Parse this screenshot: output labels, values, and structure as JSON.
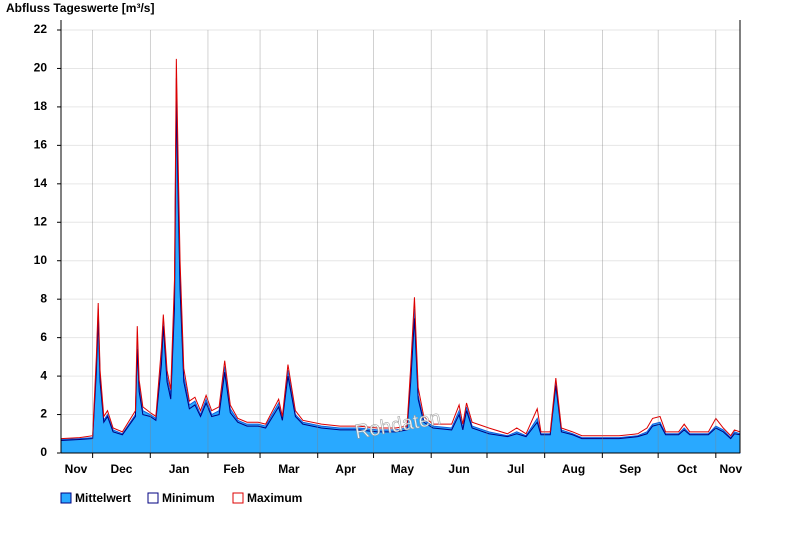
{
  "chart_data": {
    "type": "area",
    "title": "Abfluss Tageswerte [m³/s]",
    "annotation": "Rohdaten",
    "x": [
      0,
      10,
      17,
      19,
      20,
      21,
      23,
      25,
      28,
      33,
      40,
      41,
      42,
      44,
      48,
      51,
      54,
      55,
      57,
      59,
      61,
      62,
      63,
      64,
      66,
      69,
      72,
      75,
      78,
      81,
      85,
      88,
      91,
      95,
      100,
      106,
      110,
      117,
      119,
      122,
      126,
      130,
      140,
      150,
      160,
      170,
      180,
      186,
      188,
      190,
      192,
      195,
      200,
      210,
      214,
      216,
      218,
      221,
      230,
      240,
      245,
      250,
      256,
      258,
      263,
      266,
      269,
      275,
      280,
      290,
      300,
      310,
      315,
      318,
      322,
      325,
      332,
      335,
      338,
      348,
      352,
      356,
      360,
      362,
      365
    ],
    "series": [
      {
        "name": "Mittelwert",
        "color": "#29a9ff",
        "style": "area",
        "values": [
          0.7,
          0.75,
          0.8,
          4.5,
          7.5,
          4,
          1.7,
          2.0,
          1.2,
          1.0,
          2.0,
          5.8,
          3.5,
          2.2,
          2.0,
          1.8,
          5,
          7,
          4,
          3,
          8,
          19.5,
          14,
          9,
          4,
          2.5,
          2.7,
          2.0,
          2.8,
          2.0,
          2.2,
          4.5,
          2.3,
          1.7,
          1.5,
          1.5,
          1.4,
          2.6,
          1.8,
          4.3,
          2.0,
          1.6,
          1.4,
          1.3,
          1.3,
          1.2,
          1.2,
          1.3,
          4,
          7.5,
          3,
          1.7,
          1.4,
          1.3,
          2.2,
          1.3,
          2.4,
          1.4,
          1.1,
          0.9,
          1.1,
          0.9,
          1.8,
          1.0,
          1.0,
          3.7,
          1.2,
          1.0,
          0.8,
          0.8,
          0.8,
          0.9,
          1.1,
          1.5,
          1.6,
          1.0,
          1.0,
          1.3,
          1.0,
          1.0,
          1.4,
          1.2,
          0.8,
          1.1,
          1.0
        ]
      },
      {
        "name": "Minimum",
        "color": "#000080",
        "style": "line",
        "values": [
          0.65,
          0.7,
          0.75,
          4.2,
          7.0,
          3.7,
          1.6,
          1.9,
          1.1,
          0.95,
          1.9,
          5.4,
          3.2,
          2.0,
          1.9,
          1.7,
          4.6,
          6.6,
          3.7,
          2.8,
          7.5,
          18.5,
          13,
          8.5,
          3.7,
          2.3,
          2.5,
          1.9,
          2.6,
          1.9,
          2.0,
          4.2,
          2.1,
          1.6,
          1.4,
          1.4,
          1.3,
          2.4,
          1.7,
          4.0,
          1.9,
          1.5,
          1.3,
          1.2,
          1.2,
          1.1,
          1.1,
          1.2,
          3.7,
          7.0,
          2.8,
          1.6,
          1.3,
          1.2,
          2.0,
          1.2,
          2.2,
          1.3,
          1.0,
          0.85,
          1.0,
          0.85,
          1.6,
          0.95,
          0.95,
          3.5,
          1.1,
          0.95,
          0.75,
          0.75,
          0.75,
          0.85,
          1.0,
          1.4,
          1.5,
          0.95,
          0.95,
          1.2,
          0.95,
          0.95,
          1.3,
          1.1,
          0.75,
          1.0,
          0.95
        ]
      },
      {
        "name": "Maximum",
        "color": "#dd0000",
        "style": "line",
        "values": [
          0.75,
          0.8,
          0.9,
          5,
          7.8,
          4.3,
          1.9,
          2.2,
          1.3,
          1.1,
          2.2,
          6.6,
          3.8,
          2.4,
          2.1,
          1.9,
          5.5,
          7.2,
          4.3,
          3.3,
          9,
          20.5,
          15,
          10,
          4.4,
          2.7,
          2.9,
          2.2,
          3.0,
          2.2,
          2.4,
          4.8,
          2.5,
          1.8,
          1.6,
          1.6,
          1.5,
          2.8,
          1.9,
          4.6,
          2.2,
          1.7,
          1.5,
          1.4,
          1.4,
          1.3,
          1.3,
          1.4,
          4.5,
          8.1,
          3.4,
          1.9,
          1.5,
          1.5,
          2.5,
          1.5,
          2.6,
          1.6,
          1.3,
          1.0,
          1.3,
          1.0,
          2.3,
          1.1,
          1.1,
          3.9,
          1.3,
          1.1,
          0.9,
          0.9,
          0.9,
          1.0,
          1.3,
          1.8,
          1.9,
          1.1,
          1.1,
          1.5,
          1.1,
          1.1,
          1.8,
          1.3,
          0.9,
          1.2,
          1.1
        ]
      }
    ],
    "xlim": [
      0,
      365
    ],
    "xticks": [
      {
        "value": -17,
        "label": "Nov"
      },
      {
        "value": 17,
        "label": "Dec"
      },
      {
        "value": 48,
        "label": "Jan"
      },
      {
        "value": 79,
        "label": "Feb"
      },
      {
        "value": 107,
        "label": "Mar"
      },
      {
        "value": 138,
        "label": "Apr"
      },
      {
        "value": 168,
        "label": "May"
      },
      {
        "value": 199,
        "label": "Jun"
      },
      {
        "value": 229,
        "label": "Jul"
      },
      {
        "value": 260,
        "label": "Aug"
      },
      {
        "value": 291,
        "label": "Sep"
      },
      {
        "value": 321,
        "label": "Oct"
      },
      {
        "value": 352,
        "label": "Nov"
      }
    ],
    "ylim": [
      0,
      22
    ],
    "yticks": [
      0,
      2,
      4,
      6,
      8,
      10,
      12,
      14,
      16,
      18,
      20,
      22
    ],
    "grid": true
  }
}
